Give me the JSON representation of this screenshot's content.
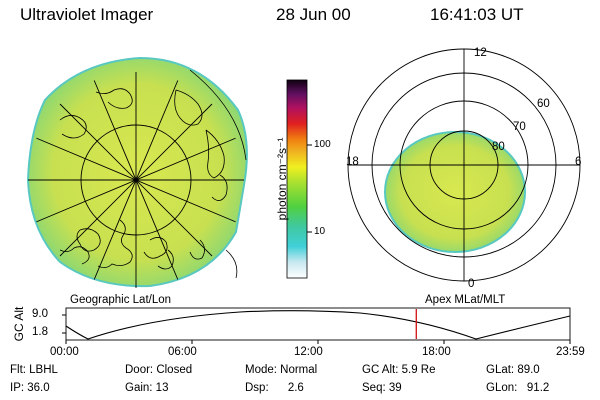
{
  "header": {
    "title": "Ultraviolet Imager",
    "date": "28 Jun 00",
    "time": "16:41:03 UT"
  },
  "colorbar": {
    "label": "photon cm⁻²s⁻¹",
    "ticks": [
      "100",
      "10"
    ]
  },
  "polar": {
    "mlt_labels": [
      "12",
      "18",
      "6",
      "0"
    ],
    "lat_labels": [
      "60",
      "70",
      "80"
    ]
  },
  "map": {
    "left_caption": "Geographic Lat/Lon",
    "right_caption": "Apex MLat/MLT"
  },
  "timeline": {
    "axis_label": "GC Alt",
    "y_ticks": [
      "9.0",
      "1.8"
    ],
    "x_ticks": [
      "00:00",
      "06:00",
      "12:00",
      "18:00",
      "23:59"
    ],
    "current_time_hours": 16.68
  },
  "status": {
    "flt": "Flt: LBHL",
    "door": "Door: Closed",
    "mode": "Mode: Normal",
    "gc_alt": "GC Alt: 5.9 Re",
    "glat": "GLat:   89.0",
    "ip": "IP: 36.0",
    "gain": "Gain: 13",
    "dsp": "Dsp:      2.6",
    "seq": "Seq: 39",
    "glon": "GLon:   91.2"
  },
  "colors": {
    "auroral_fill": "#c8e050",
    "auroral_edge": "#60d0c0",
    "time_marker": "#d01010"
  }
}
